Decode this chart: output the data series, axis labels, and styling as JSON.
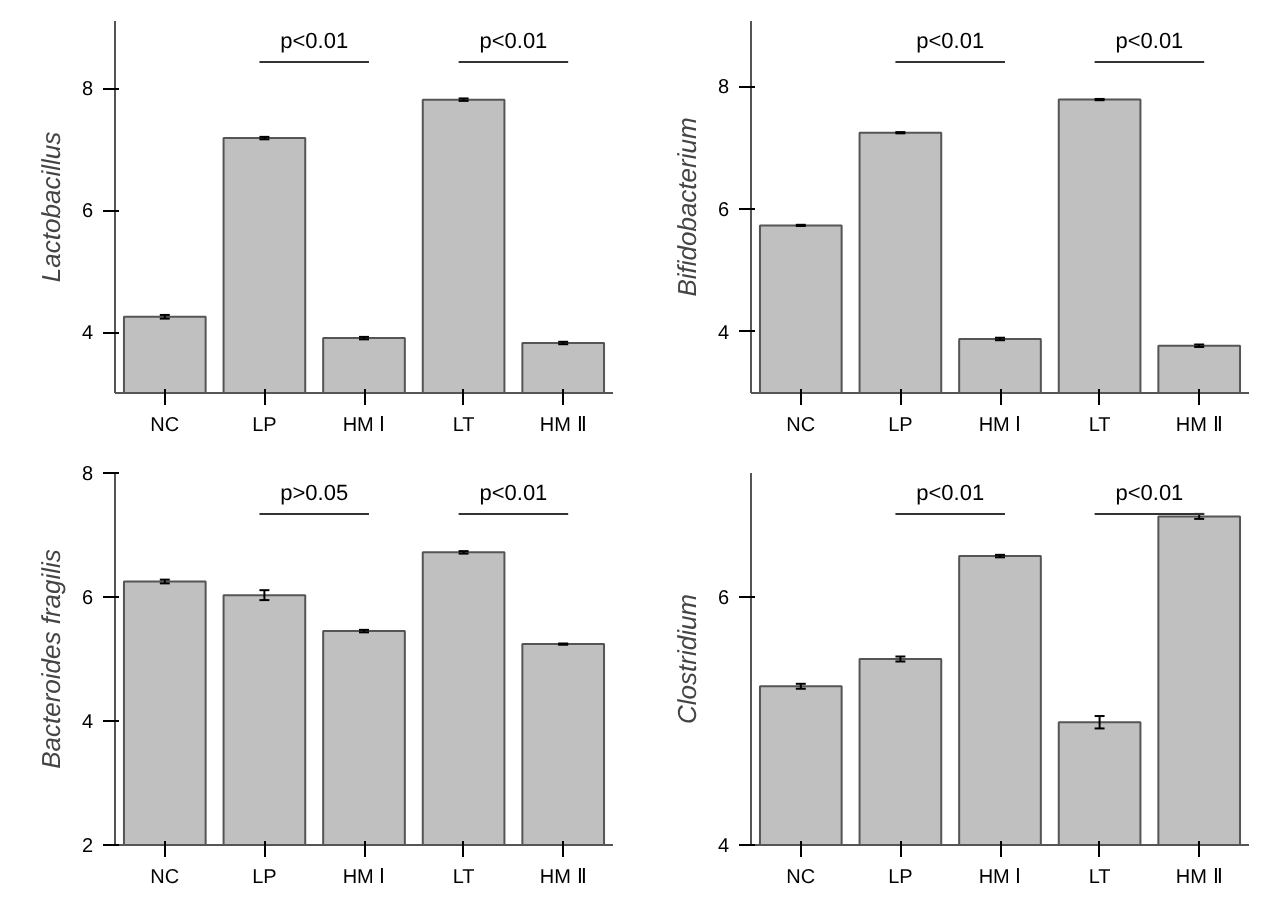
{
  "chart_data": [
    {
      "type": "bar",
      "ylabel": "Lactobacillus",
      "categories": [
        "NC",
        "LP",
        "HM Ⅰ",
        "LT",
        "HM Ⅱ"
      ],
      "values": [
        4.25,
        7.18,
        3.9,
        7.81,
        3.82
      ],
      "errors": [
        0.03,
        0.02,
        0.02,
        0.02,
        0.02
      ],
      "color": "#c0c0c0",
      "ylim": [
        3,
        9.1
      ],
      "yticks": [
        4,
        6,
        8
      ],
      "annotations": [
        "p<0.01",
        "p<0.01"
      ]
    },
    {
      "type": "bar",
      "ylabel": "Bifidobacterium",
      "categories": [
        "NC",
        "LP",
        "HM Ⅰ",
        "LT",
        "HM Ⅱ"
      ],
      "values": [
        5.73,
        7.24,
        3.88,
        7.78,
        3.77
      ],
      "errors": [
        0.01,
        0.01,
        0.02,
        0.01,
        0.02
      ],
      "color": "#c0c0c0",
      "ylim": [
        3,
        9.06
      ],
      "yticks": [
        4,
        6,
        8
      ],
      "annotations": [
        "p<0.01",
        "p<0.01"
      ]
    },
    {
      "type": "bar",
      "ylabel": "Bacteroides fragilis",
      "categories": [
        "NC",
        "LP",
        "HM Ⅰ",
        "LT",
        "HM Ⅱ"
      ],
      "values": [
        6.25,
        6.03,
        5.45,
        6.72,
        5.24
      ],
      "errors": [
        0.03,
        0.08,
        0.02,
        0.02,
        0.01
      ],
      "color": "#c0c0c0",
      "ylim": [
        2,
        8
      ],
      "yticks": [
        2,
        4,
        6,
        8
      ],
      "annotations": [
        "p>0.05",
        "p<0.01"
      ]
    },
    {
      "type": "bar",
      "ylabel": "Clostridium",
      "categories": [
        "NC",
        "LP",
        "HM Ⅰ",
        "LT",
        "HM Ⅱ"
      ],
      "values": [
        5.28,
        5.5,
        6.33,
        4.99,
        6.65
      ],
      "errors": [
        0.02,
        0.02,
        0.01,
        0.05,
        0.02
      ],
      "color": "#c0c0c0",
      "ylim": [
        4,
        7.0
      ],
      "yticks": [
        4,
        6
      ],
      "annotations": [
        "p<0.01",
        "p<0.01"
      ]
    }
  ]
}
